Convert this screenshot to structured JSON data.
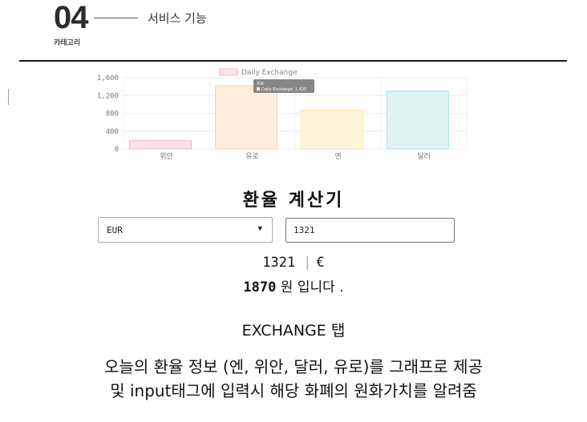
{
  "header": {
    "number": "04",
    "title": "서비스 기능",
    "category": "카테고리"
  },
  "chart_data": {
    "type": "bar",
    "categories": [
      "위안",
      "유로",
      "엔",
      "달러"
    ],
    "series": [
      {
        "name": "Daily Exchange",
        "values": [
          185,
          1420,
          870,
          1300
        ]
      }
    ],
    "colors": [
      "#ffe2e7",
      "#ffeedd",
      "#fff4d9",
      "#dff3f3"
    ],
    "border_colors": [
      "#ffb3c1",
      "#ffd3ad",
      "#ffe3a4",
      "#b2e4e4"
    ],
    "yticks": [
      "0",
      "400",
      "800",
      "1,200",
      "1,600"
    ],
    "ylim": [
      0,
      1600
    ],
    "legend": "top-center",
    "tooltip": {
      "title": "유로",
      "label": "Daily Exchange: 1,420"
    }
  },
  "calculator": {
    "title": "환율 계산기",
    "selected_currency": "EUR",
    "amount": "1321",
    "result_amount": "1321",
    "result_symbol": "€",
    "result_value": "1870",
    "result_suffix": "원 입니다 ."
  },
  "caption": {
    "tab": "EXCHANGE 탭",
    "line1": "오늘의 환율 정보 (엔, 위안, 달러, 유로)를 그래프로 제공",
    "line2": "및 input태그에 입력시 해당 화폐의 원화가치를 알려줌"
  }
}
